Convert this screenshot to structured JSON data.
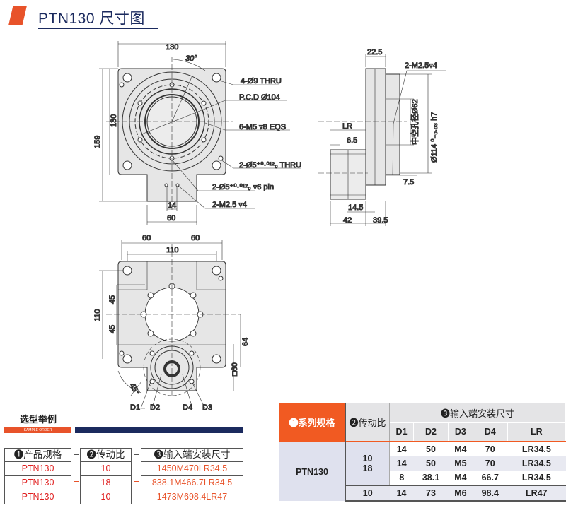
{
  "header": {
    "title": "PTN130 尺寸图"
  },
  "top_view": {
    "dims": {
      "w": "130",
      "angle": "30°",
      "h_total": "159",
      "h": "130",
      "d14": "14",
      "d60": "60"
    },
    "callouts": [
      "4-Ø9 THRU",
      "P.C.D Ø104",
      "6-M5 ▿8 EQS",
      "2-Ø5⁺⁰·⁰¹²₀ THRU",
      "2-Ø5⁺⁰·⁰¹²₀ ▿6 pin",
      "2-M2.5 ▿4"
    ]
  },
  "side_view": {
    "dims": {
      "d22_5": "22.5",
      "tap": "2-M2.5▿4",
      "bore": "中空孔径Ø62",
      "pilot": "Ø114 ⁰₋₀.₀₃ h7",
      "lr": "LR",
      "d6_5": "6.5",
      "d7_5": "7.5",
      "d14_5": "14.5",
      "d42": "42",
      "d39_5": "39.5"
    }
  },
  "bottom_view": {
    "dims": {
      "d60a": "60",
      "d60b": "60",
      "d110w": "110",
      "d110h": "110",
      "d45a": "45",
      "d45b": "45",
      "d64": "64",
      "sq60": "□60",
      "angle": "45°"
    },
    "labels": [
      "D1",
      "D2",
      "D4",
      "D3"
    ]
  },
  "sample_order": {
    "title": "选型举例",
    "subtitle": "SAMPLE ORDER",
    "headers": [
      "❶产品规格",
      "❷传动比",
      "❸输入端安装尺寸"
    ],
    "rows": [
      [
        "PTN130",
        "10",
        "1450M470LR34.5"
      ],
      [
        "PTN130",
        "18",
        "838.1M466.7LR34.5"
      ],
      [
        "PTN130",
        "10",
        "1473M698.4LR47"
      ]
    ],
    "sep": "-"
  },
  "spec_table": {
    "h_series": "❶系列规格",
    "h_ratio": "❷传动比",
    "h_input": "❸输入端安装尺寸",
    "cols": [
      "D1",
      "D2",
      "D3",
      "D4",
      "LR"
    ],
    "series": "PTN130",
    "ratio_group1": "10",
    "ratio_group1b": "18",
    "ratio_group2": "10",
    "rows": [
      [
        "14",
        "50",
        "M4",
        "70",
        "LR34.5"
      ],
      [
        "14",
        "50",
        "M5",
        "70",
        "LR34.5"
      ],
      [
        "8",
        "38.1",
        "M4",
        "66.7",
        "LR34.5"
      ],
      [
        "14",
        "73",
        "M6",
        "98.4",
        "LR47"
      ]
    ]
  },
  "colors": {
    "accent": "#f15a22",
    "navy": "#1b2a5e",
    "part_fill": "#e6e6e6"
  }
}
